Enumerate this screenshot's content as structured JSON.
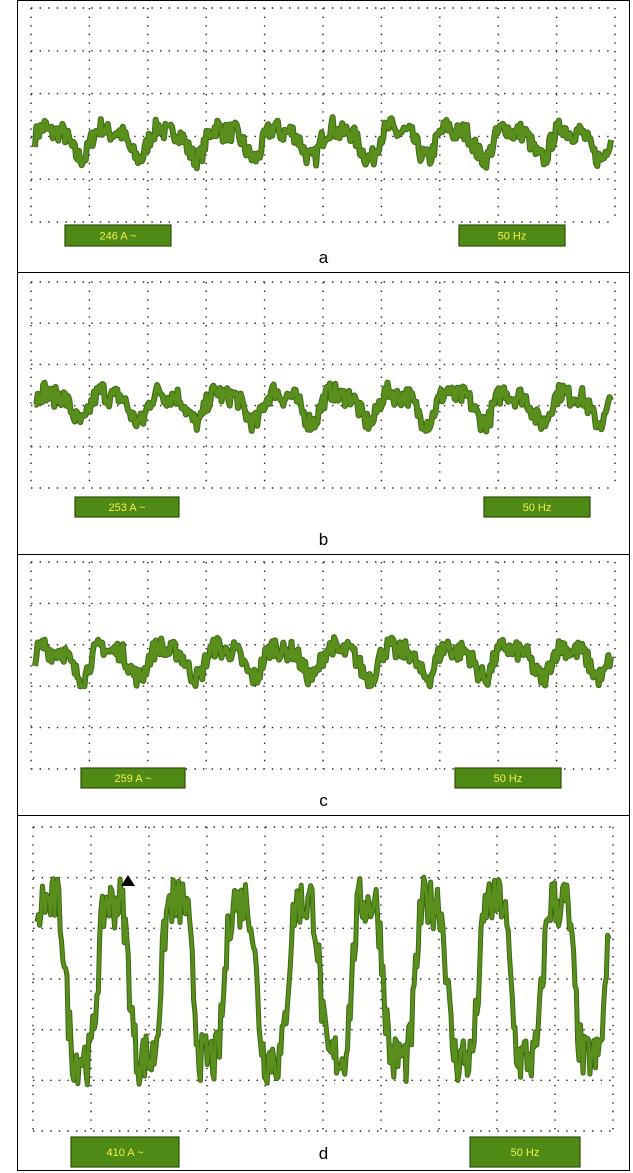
{
  "colors": {
    "trace": "#5a8f1e",
    "trace_edge": "#3a6a10",
    "badge_fill": "#4f8a14",
    "badge_text": "#f2f24a",
    "grid_dots": "#222222"
  },
  "chart_data": [
    {
      "type": "line",
      "panel_label": "a",
      "current_reading": "246 A ~",
      "frequency_reading": "50 Hz",
      "grid": true,
      "cycles": 10,
      "relative_amplitude": 0.22,
      "series": [
        {
          "values": []
        }
      ]
    },
    {
      "type": "line",
      "panel_label": "b",
      "current_reading": "253 A ~",
      "frequency_reading": "50 Hz",
      "grid": true,
      "cycles": 10,
      "relative_amplitude": 0.22,
      "series": [
        {
          "values": []
        }
      ]
    },
    {
      "type": "line",
      "panel_label": "c",
      "current_reading": "259 A ~",
      "frequency_reading": "50 Hz",
      "grid": true,
      "cycles": 10,
      "relative_amplitude": 0.22,
      "series": [
        {
          "values": []
        }
      ]
    },
    {
      "type": "line",
      "panel_label": "d",
      "current_reading": "410 A ~",
      "frequency_reading": "50 Hz",
      "grid": true,
      "cycles": 9,
      "relative_amplitude": 1.0,
      "series": [
        {
          "values": []
        }
      ]
    }
  ]
}
